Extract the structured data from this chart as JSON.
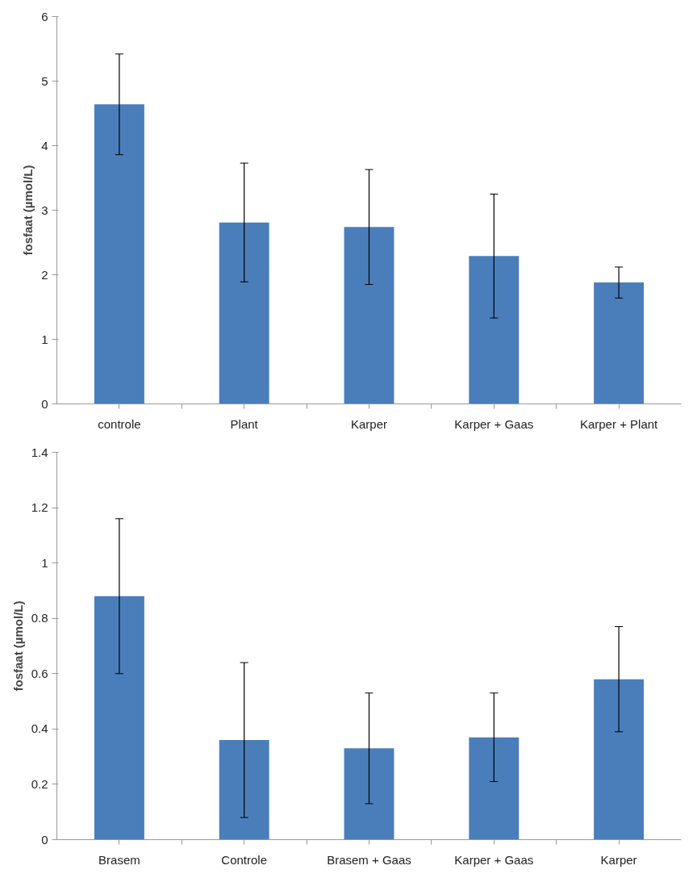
{
  "chart_data": [
    {
      "type": "bar",
      "ylabel": "fosfaat (µmol/L)",
      "categories": [
        "controle",
        "Plant",
        "Karper",
        "Karper + Gaas",
        "Karper + Plant"
      ],
      "values": [
        4.64,
        2.81,
        2.74,
        2.29,
        1.88
      ],
      "errors": [
        0.78,
        0.92,
        0.89,
        0.96,
        0.24
      ],
      "color": "#4a7ebb",
      "ylim": [
        0,
        6
      ],
      "yticks": [
        0,
        1,
        2,
        3,
        4,
        5,
        6
      ]
    },
    {
      "type": "bar",
      "ylabel": "fosfaat (µmol/L)",
      "categories": [
        "Brasem",
        "Controle",
        "Brasem + Gaas",
        "Karper + Gaas",
        "Karper"
      ],
      "values": [
        0.88,
        0.36,
        0.33,
        0.37,
        0.58
      ],
      "errors": [
        0.28,
        0.28,
        0.2,
        0.16,
        0.19
      ],
      "color": "#4a7ebb",
      "ylim": [
        0,
        1.4
      ],
      "yticks": [
        0,
        0.2,
        0.4,
        0.6,
        0.8,
        1,
        1.2,
        1.4
      ]
    }
  ]
}
